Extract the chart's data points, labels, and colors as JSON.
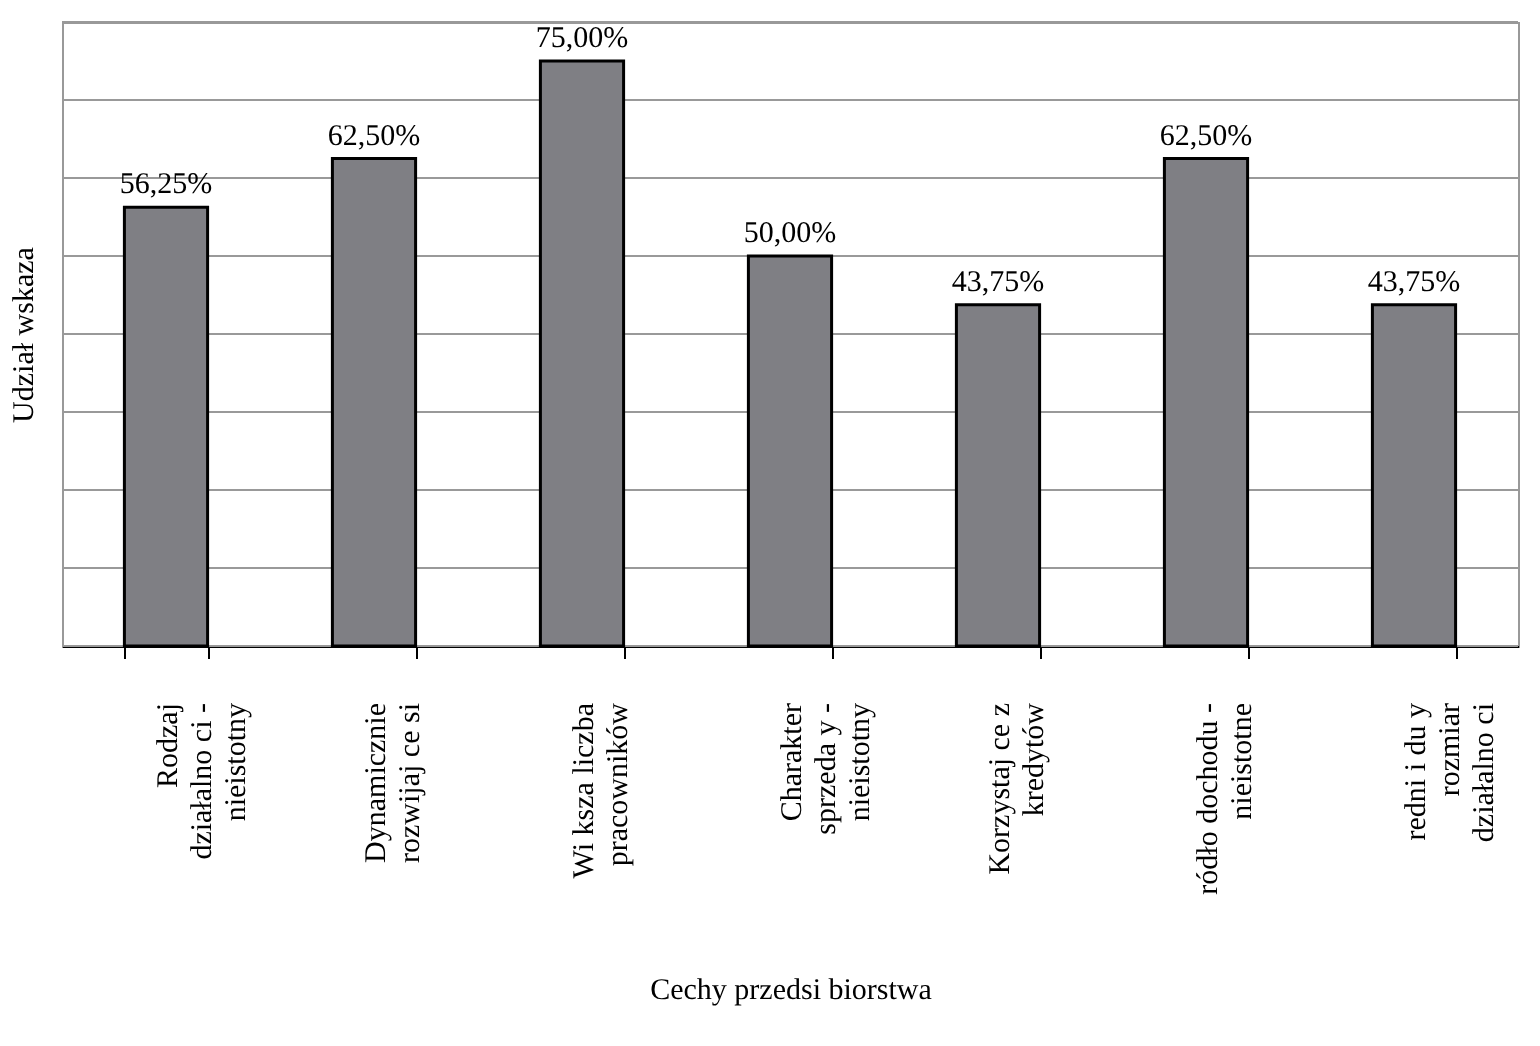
{
  "chart_data": {
    "type": "bar",
    "xlabel": "Cechy przedsi  biorstwa",
    "ylabel": "Udział wskaza",
    "categories": [
      "Rodzaj\ndziałalno ci -\nnieistotny",
      "Dynamicznie\nrozwijaj  ce si",
      "Wi  ksza liczba\npracowników",
      "Charakter\nsprzeda  y -\nnieistotny",
      "Korzystaj  ce z\nkredytów",
      "ródło dochodu -\nnieistotne",
      "redni i du  y\nrozmiar\ndziałalno ci"
    ],
    "values": [
      56.25,
      62.5,
      75,
      50,
      43.75,
      62.5,
      43.75
    ],
    "value_labels": [
      "56,25%",
      "62,50%",
      "75,00%",
      "50,00%",
      "43,75%",
      "62,50%",
      "43,75%"
    ],
    "color": "#7f7f84",
    "ylim": [
      0,
      80
    ],
    "yticks": [
      {
        "value": 0,
        "label": null
      },
      {
        "value": 10,
        "label": null
      },
      {
        "value": 20,
        "label": null
      },
      {
        "value": 30,
        "label": null
      },
      {
        "value": 40,
        "label": null
      },
      {
        "value": 50,
        "label": null
      },
      {
        "value": 60,
        "label": null
      },
      {
        "value": 70,
        "label": null
      },
      {
        "value": 80,
        "label": null
      }
    ],
    "grid": "y",
    "tick_labels": "x"
  }
}
